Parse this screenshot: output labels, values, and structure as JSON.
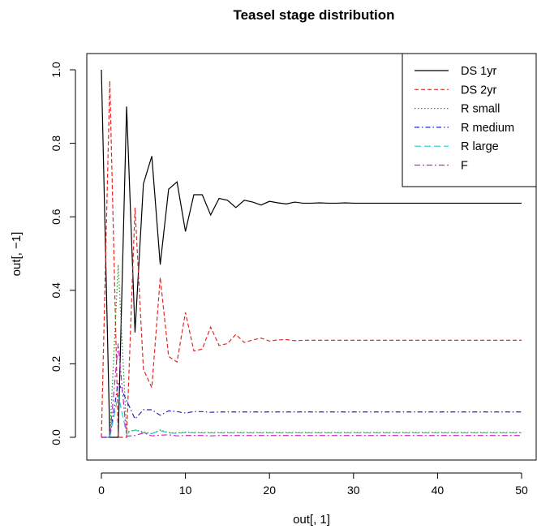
{
  "chart_data": {
    "type": "line",
    "title": "Teasel stage distribution",
    "xlabel": "out[, 1]",
    "ylabel": "out[, −1]",
    "xlim": [
      0,
      50
    ],
    "ylim": [
      0,
      1.0
    ],
    "xticks": [
      "0",
      "10",
      "20",
      "30",
      "40",
      "50"
    ],
    "yticks": [
      "0.0",
      "0.2",
      "0.4",
      "0.6",
      "0.8",
      "1.0"
    ],
    "legend_position": "top-right",
    "x": [
      0,
      1,
      2,
      3,
      4,
      5,
      6,
      7,
      8,
      9,
      10,
      11,
      12,
      13,
      14,
      15,
      16,
      17,
      18,
      19,
      20,
      21,
      22,
      23,
      24,
      25,
      26,
      27,
      28,
      29,
      30,
      31,
      32,
      33,
      34,
      35,
      36,
      37,
      38,
      39,
      40,
      41,
      42,
      43,
      44,
      45,
      46,
      47,
      48,
      49,
      50
    ],
    "series": [
      {
        "name": "DS 1yr",
        "color": "#000000",
        "dash": "",
        "values": [
          1.0,
          0.0,
          0.0,
          0.9,
          0.285,
          0.69,
          0.765,
          0.47,
          0.675,
          0.695,
          0.56,
          0.66,
          0.66,
          0.605,
          0.65,
          0.645,
          0.625,
          0.645,
          0.64,
          0.632,
          0.642,
          0.638,
          0.635,
          0.64,
          0.637,
          0.637,
          0.638,
          0.637,
          0.637,
          0.638,
          0.637,
          0.637,
          0.637,
          0.637,
          0.637,
          0.637,
          0.637,
          0.637,
          0.637,
          0.637,
          0.637,
          0.637,
          0.637,
          0.637,
          0.637,
          0.637,
          0.637,
          0.637,
          0.637,
          0.637,
          0.637
        ]
      },
      {
        "name": "DS 2yr",
        "color": "#df2a2a",
        "dash": "5,3",
        "values": [
          0.0,
          0.97,
          0.0,
          0.0,
          0.625,
          0.185,
          0.135,
          0.435,
          0.22,
          0.205,
          0.34,
          0.235,
          0.24,
          0.3,
          0.25,
          0.255,
          0.28,
          0.258,
          0.265,
          0.27,
          0.262,
          0.265,
          0.266,
          0.263,
          0.264,
          0.264,
          0.264,
          0.264,
          0.264,
          0.264,
          0.264,
          0.264,
          0.264,
          0.264,
          0.264,
          0.264,
          0.264,
          0.264,
          0.264,
          0.264,
          0.264,
          0.264,
          0.264,
          0.264,
          0.264,
          0.264,
          0.264,
          0.264,
          0.264,
          0.264,
          0.264
        ]
      },
      {
        "name": "R small",
        "color": "#1f9a1f",
        "dash": "1.5,2.5",
        "values": [
          0.0,
          0.0,
          0.47,
          0.015,
          0.02,
          0.015,
          0.01,
          0.02,
          0.013,
          0.012,
          0.014,
          0.013,
          0.013,
          0.013,
          0.013,
          0.013,
          0.013,
          0.013,
          0.013,
          0.013,
          0.013,
          0.013,
          0.013,
          0.013,
          0.013,
          0.013,
          0.013,
          0.013,
          0.013,
          0.013,
          0.013,
          0.013,
          0.013,
          0.013,
          0.013,
          0.013,
          0.013,
          0.013,
          0.013,
          0.013,
          0.013,
          0.013,
          0.013,
          0.013,
          0.013,
          0.013,
          0.013,
          0.013,
          0.013,
          0.013,
          0.013
        ]
      },
      {
        "name": "R medium",
        "color": "#2222cc",
        "dash": "6,3,1.5,3",
        "values": [
          0.0,
          0.0,
          0.15,
          0.1,
          0.05,
          0.075,
          0.075,
          0.06,
          0.072,
          0.07,
          0.066,
          0.07,
          0.07,
          0.068,
          0.069,
          0.069,
          0.069,
          0.069,
          0.069,
          0.069,
          0.069,
          0.069,
          0.069,
          0.069,
          0.069,
          0.069,
          0.069,
          0.069,
          0.069,
          0.069,
          0.069,
          0.069,
          0.069,
          0.069,
          0.069,
          0.069,
          0.069,
          0.069,
          0.069,
          0.069,
          0.069,
          0.069,
          0.069,
          0.069,
          0.069,
          0.069,
          0.069,
          0.069,
          0.069,
          0.069,
          0.069
        ]
      },
      {
        "name": "R large",
        "color": "#22cccc",
        "dash": "8,4",
        "values": [
          0.0,
          0.0,
          0.115,
          0.01,
          0.02,
          0.012,
          0.01,
          0.018,
          0.012,
          0.011,
          0.013,
          0.012,
          0.012,
          0.012,
          0.012,
          0.012,
          0.012,
          0.012,
          0.012,
          0.012,
          0.012,
          0.012,
          0.012,
          0.012,
          0.012,
          0.012,
          0.012,
          0.012,
          0.012,
          0.012,
          0.012,
          0.012,
          0.012,
          0.012,
          0.012,
          0.012,
          0.012,
          0.012,
          0.012,
          0.012,
          0.012,
          0.012,
          0.012,
          0.012,
          0.012,
          0.012,
          0.012,
          0.012,
          0.012,
          0.012,
          0.012
        ]
      },
      {
        "name": "F",
        "color": "#cc22cc",
        "dash": "7,3,2,3",
        "values": [
          0.0,
          0.0,
          0.255,
          0.003,
          0.005,
          0.012,
          0.004,
          0.006,
          0.007,
          0.004,
          0.005,
          0.005,
          0.005,
          0.004,
          0.005,
          0.005,
          0.005,
          0.005,
          0.005,
          0.005,
          0.005,
          0.005,
          0.005,
          0.005,
          0.005,
          0.005,
          0.005,
          0.005,
          0.005,
          0.005,
          0.005,
          0.005,
          0.005,
          0.005,
          0.005,
          0.005,
          0.005,
          0.005,
          0.005,
          0.005,
          0.005,
          0.005,
          0.005,
          0.005,
          0.005,
          0.005,
          0.005,
          0.005,
          0.005,
          0.005,
          0.005
        ]
      }
    ]
  }
}
